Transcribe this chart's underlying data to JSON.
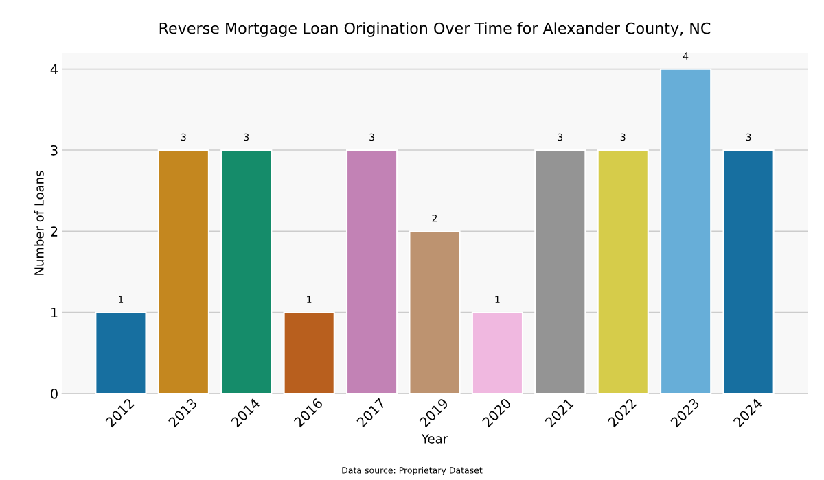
{
  "chart_data": {
    "type": "bar",
    "title": "Reverse Mortgage Loan Origination Over Time for Alexander County, NC",
    "xlabel": "Year",
    "ylabel": "Number of Loans",
    "categories": [
      "2012",
      "2013",
      "2014",
      "2016",
      "2017",
      "2019",
      "2020",
      "2021",
      "2022",
      "2023",
      "2024"
    ],
    "values": [
      1,
      3,
      3,
      1,
      3,
      2,
      1,
      3,
      3,
      4,
      3
    ],
    "colors": [
      "#176fa0",
      "#c4871f",
      "#158c6a",
      "#b85f1e",
      "#c282b5",
      "#bd9370",
      "#f0b8e0",
      "#949494",
      "#d6cc4a",
      "#67aed8",
      "#176fa0"
    ],
    "ylim": [
      0,
      4.2
    ],
    "yticks": [
      0,
      1,
      2,
      3,
      4
    ],
    "grid": "y",
    "data_labels": true,
    "annotations": [
      "Data source: Proprietary Dataset"
    ]
  }
}
